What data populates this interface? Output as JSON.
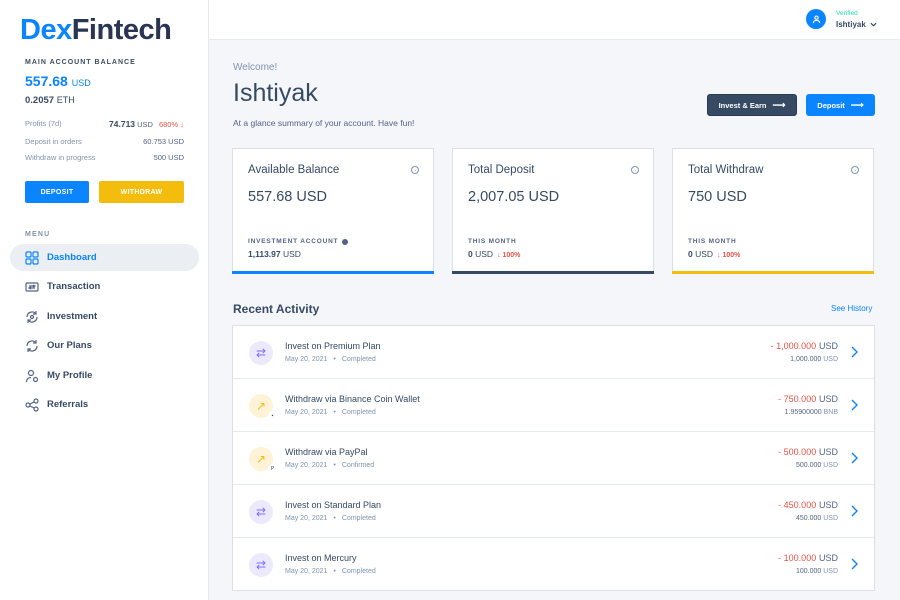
{
  "sidebar": {
    "logo_part1": "Dex",
    "logo_part2": "Fintech",
    "balance_label": "MAIN ACCOUNT BALANCE",
    "balance_usd": "557.68",
    "balance_usd_currency": "USD",
    "balance_eth": "0.2057",
    "balance_eth_currency": "ETH",
    "stats": [
      {
        "label": "Profits (7d)",
        "value": "74.713",
        "currency": "USD",
        "change": "680% ↓"
      },
      {
        "label": "Deposit in orders",
        "value": "60.753 USD"
      },
      {
        "label": "Withdraw in progress",
        "value": "500 USD"
      }
    ],
    "deposit_button": "DEPOSIT",
    "withdraw_button": "WITHDRAW",
    "menu_label": "MENU",
    "menu": [
      {
        "label": "Dashboard",
        "icon": "dashboard-icon"
      },
      {
        "label": "Transaction",
        "icon": "transaction-icon"
      },
      {
        "label": "Investment",
        "icon": "investment-icon"
      },
      {
        "label": "Our Plans",
        "icon": "plans-icon"
      },
      {
        "label": "My Profile",
        "icon": "profile-icon"
      },
      {
        "label": "Referrals",
        "icon": "share-icon"
      }
    ]
  },
  "header": {
    "user_status": "Verified",
    "user_name": "Ishtiyak"
  },
  "main": {
    "welcome": "Welcome!",
    "title": "Ishtiyak",
    "subtitle": "At a glance summary of your account. Have fun!",
    "invest_button": "Invest & Earn",
    "deposit_button": "Deposit",
    "cards": [
      {
        "title": "Available Balance",
        "amount": "557.68 USD",
        "label": "INVESTMENT ACCOUNT",
        "value": "1,113.97",
        "currency": "USD",
        "change": "",
        "bar_color": "#0a84ff"
      },
      {
        "title": "Total Deposit",
        "amount": "2,007.05 USD",
        "label": "THIS MONTH",
        "value": "0",
        "currency": "USD",
        "change": "↓ 100%",
        "bar_color": "#364a63"
      },
      {
        "title": "Total Withdraw",
        "amount": "750 USD",
        "label": "THIS MONTH",
        "value": "0",
        "currency": "USD",
        "change": "↓ 100%",
        "bar_color": "#f4bd0e"
      }
    ],
    "recent_activity_title": "Recent Activity",
    "see_history": "See History",
    "activity": [
      {
        "title": "Invest on Premium Plan",
        "date": "May 20, 2021",
        "status": "Completed",
        "amount": "- 1,000.000",
        "currency": "USD",
        "sub_amount": "1,000.000",
        "sub_currency": "USD",
        "type": "invest",
        "badge": ""
      },
      {
        "title": "Withdraw via Binance Coin Wallet",
        "date": "May 20, 2021",
        "status": "Completed",
        "amount": "- 750.000",
        "currency": "USD",
        "sub_amount": "1.95900000",
        "sub_currency": "BNB",
        "type": "withdraw",
        "badge": "wallet-icon"
      },
      {
        "title": "Withdraw via PayPal",
        "date": "May 20, 2021",
        "status": "Confirmed",
        "amount": "- 500.000",
        "currency": "USD",
        "sub_amount": "500.000",
        "sub_currency": "USD",
        "type": "withdraw",
        "badge": "paypal-icon"
      },
      {
        "title": "Invest on Standard Plan",
        "date": "May 20, 2021",
        "status": "Completed",
        "amount": "- 450.000",
        "currency": "USD",
        "sub_amount": "450.000",
        "sub_currency": "USD",
        "type": "invest",
        "badge": ""
      },
      {
        "title": "Invest on Mercury",
        "date": "May 20, 2021",
        "status": "Completed",
        "amount": "- 100.000",
        "currency": "USD",
        "sub_amount": "100.000",
        "sub_currency": "USD",
        "type": "invest",
        "badge": ""
      }
    ]
  }
}
